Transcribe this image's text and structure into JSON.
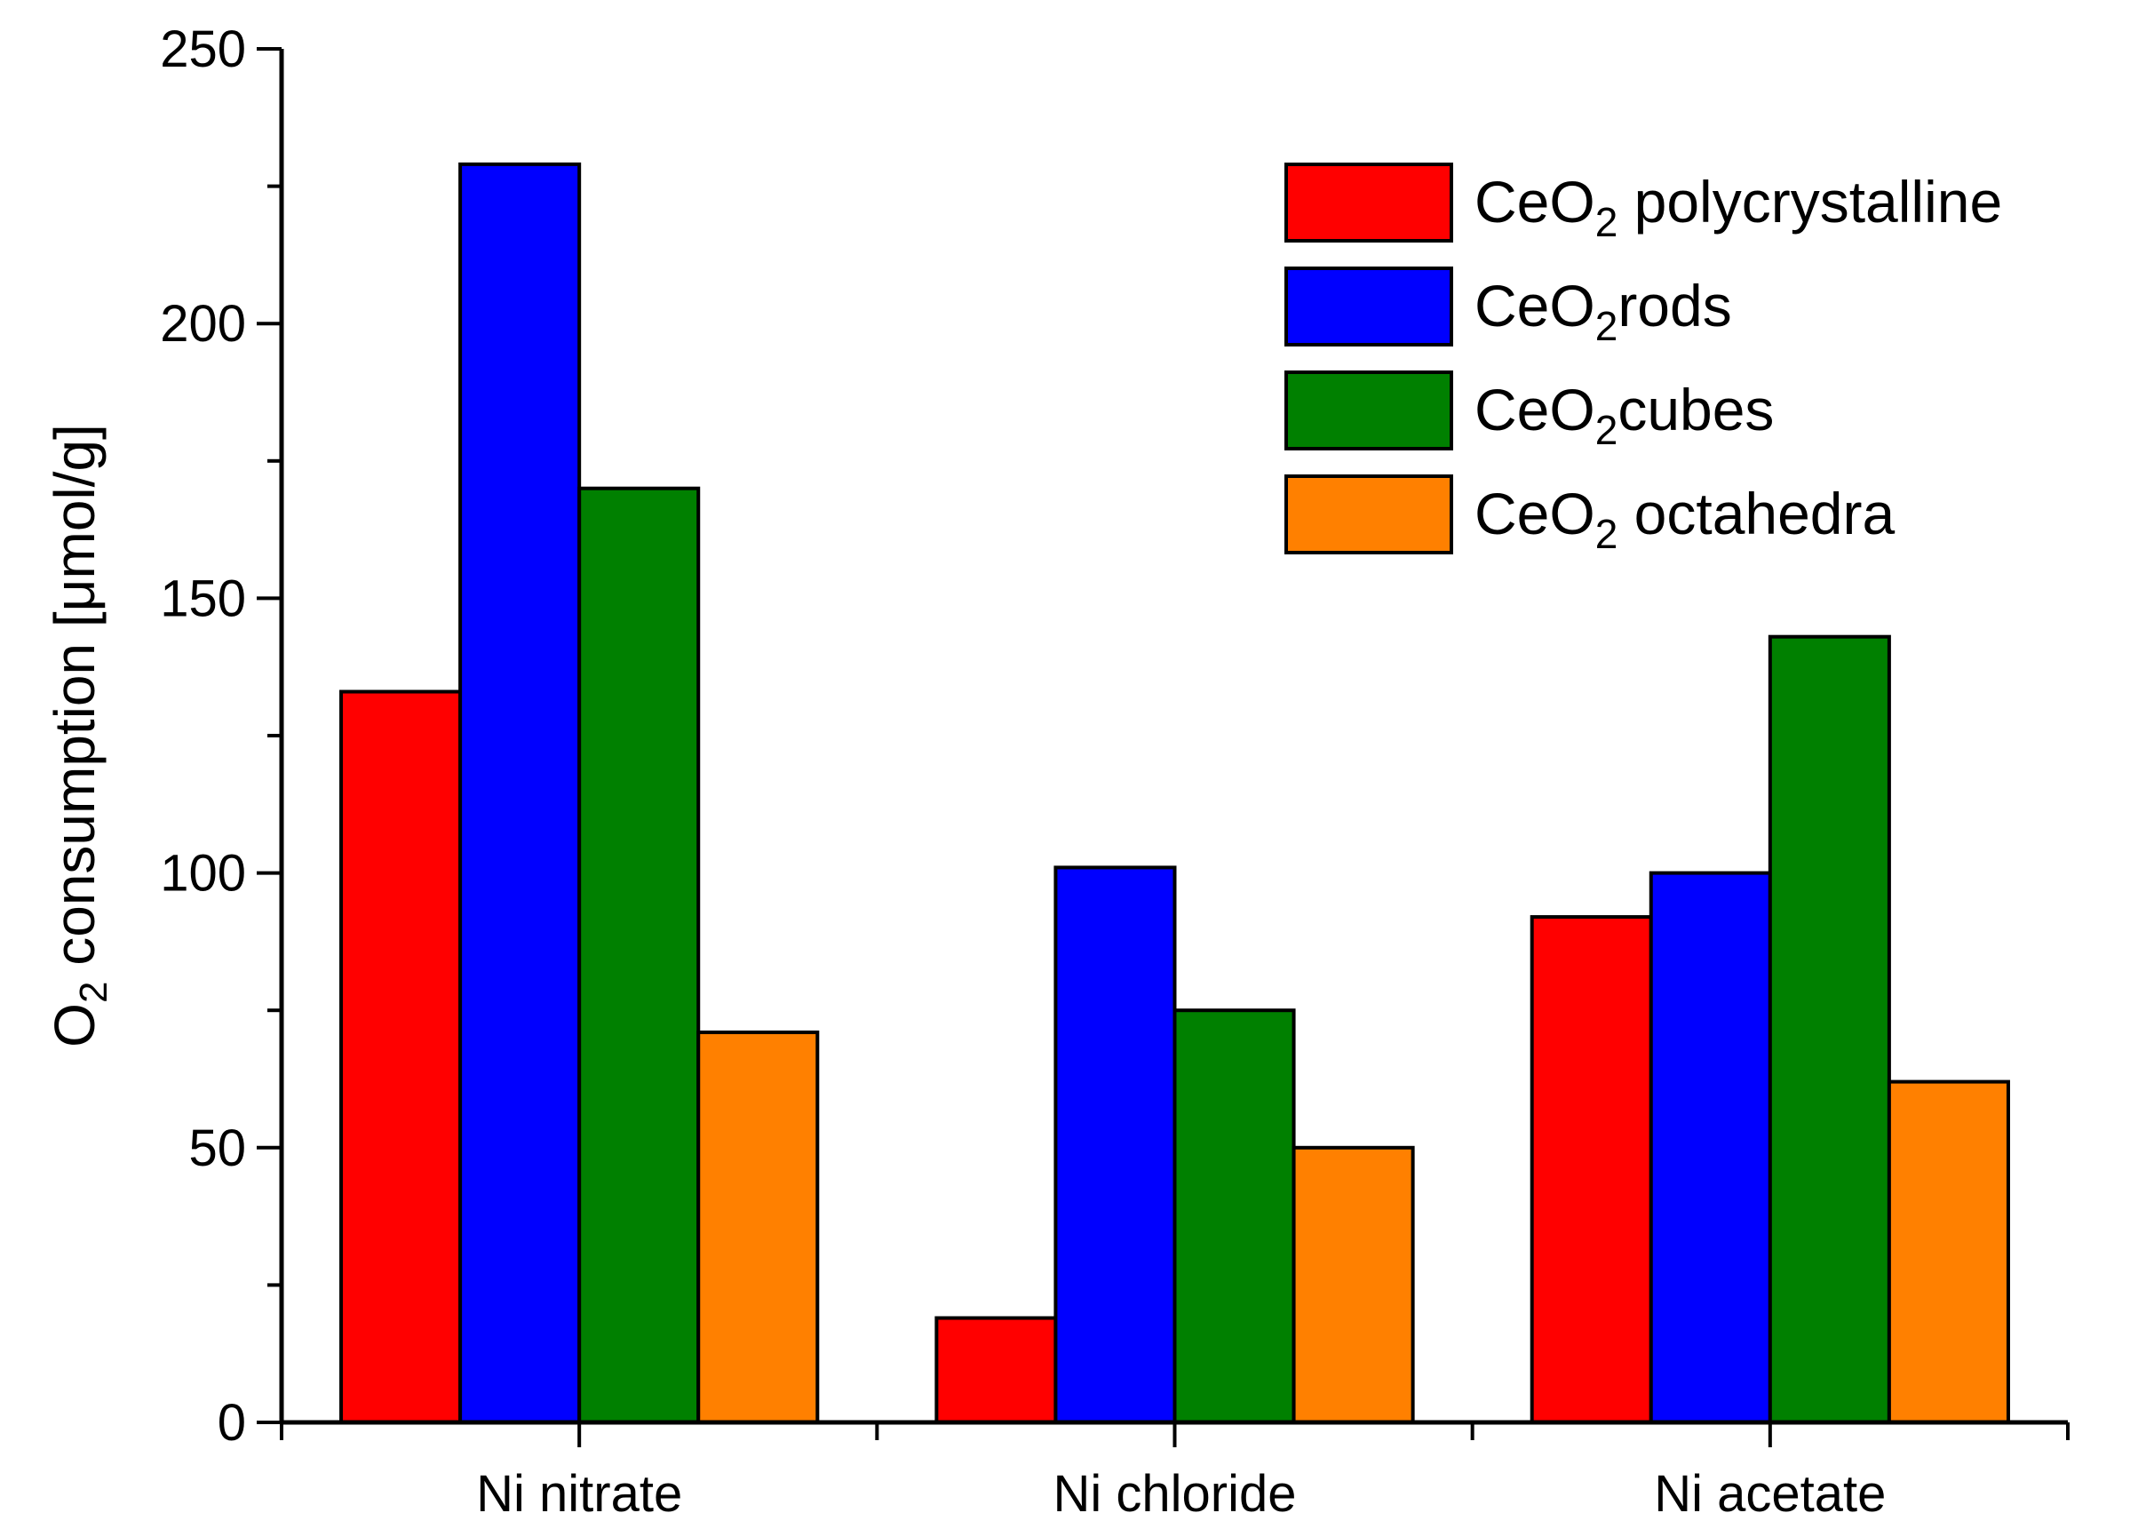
{
  "chart_data": {
    "type": "bar",
    "categories": [
      "Ni nitrate",
      "Ni chloride",
      "Ni acetate"
    ],
    "series": [
      {
        "name": "polycrystalline",
        "legend_prefix": "CeO",
        "legend_sub": "2",
        "legend_sep": " ",
        "color": "#ff0000",
        "values": [
          133,
          19,
          92
        ]
      },
      {
        "name": "rods",
        "legend_prefix": "CeO",
        "legend_sub": "2",
        "legend_sep": "",
        "color": "#0000ff",
        "values": [
          229,
          101,
          100
        ]
      },
      {
        "name": "cubes",
        "legend_prefix": "CeO",
        "legend_sub": "2",
        "legend_sep": "",
        "color": "#008000",
        "values": [
          170,
          75,
          143
        ]
      },
      {
        "name": "octahedra",
        "legend_prefix": "CeO",
        "legend_sub": "2",
        "legend_sep": " ",
        "color": "#ff8000",
        "values": [
          71,
          50,
          62
        ]
      }
    ],
    "ylabel_prefix": "O",
    "ylabel_sub": "2",
    "ylabel_rest": " consumption [μmol/g]",
    "ylim": [
      0,
      250
    ],
    "yticks": [
      0,
      50,
      100,
      150,
      200,
      250
    ],
    "y_minor_step": 25,
    "grid": false,
    "legend_position": "top-right"
  }
}
